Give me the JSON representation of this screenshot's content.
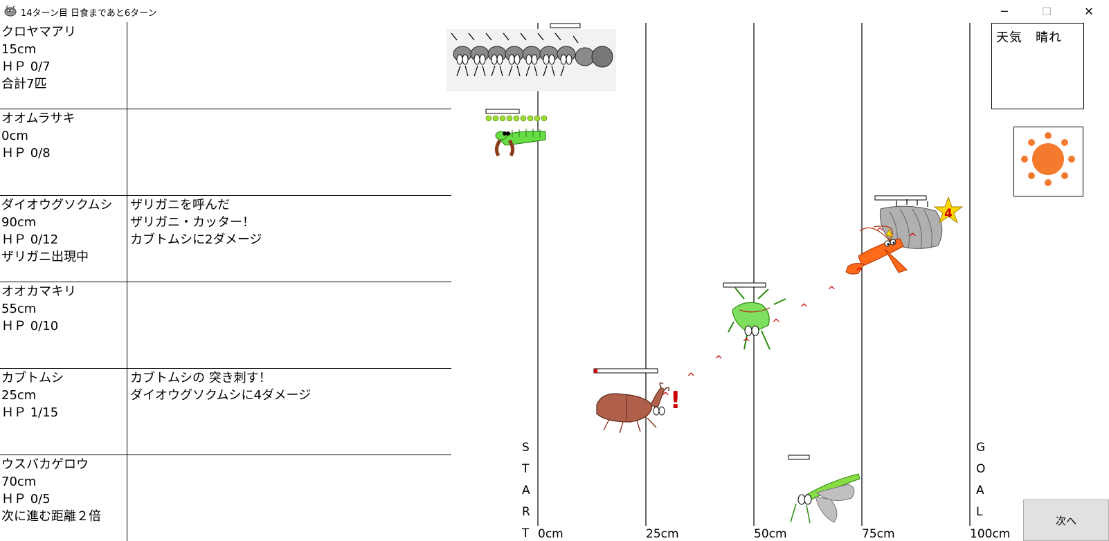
{
  "window": {
    "title": "14ターン目 日食まであと6ターン",
    "minimize": "─",
    "maximize": "☐",
    "close": "✕"
  },
  "players": [
    {
      "name": "クロヤマアリ",
      "distance": "15cm",
      "hp": "ＨＰ 0/7",
      "note": "合計7匹",
      "log": []
    },
    {
      "name": "オオムラサキ",
      "distance": "0cm",
      "hp": "ＨＰ 0/8",
      "note": "",
      "log": []
    },
    {
      "name": "ダイオウグソクムシ",
      "distance": "90cm",
      "hp": "ＨＰ 0/12",
      "note": "ザリガニ出現中",
      "log": [
        "ザリガニを呼んだ",
        "ザリガニ・カッター！",
        "カブトムシに2ダメージ"
      ]
    },
    {
      "name": "オオカマキリ",
      "distance": "55cm",
      "hp": "ＨＰ 0/10",
      "note": "",
      "log": []
    },
    {
      "name": "カブトムシ",
      "distance": "25cm",
      "hp": "ＨＰ 1/15",
      "note": "",
      "log": [
        "カブトムシの 突き刺す！",
        "ダイオウグソクムシに4ダメージ"
      ]
    },
    {
      "name": "ウスバカゲロウ",
      "distance": "70cm",
      "hp": "ＨＰ 0/5",
      "note": "次に進む距離２倍",
      "log": []
    }
  ],
  "track": {
    "start_letters": [
      "S",
      "T",
      "A",
      "R",
      "T"
    ],
    "goal_letters": [
      "G",
      "O",
      "A",
      "L"
    ],
    "tick_labels": [
      "0cm",
      "25cm",
      "50cm",
      "75cm",
      "100cm"
    ],
    "damage_mark": "4",
    "exclaim": "!",
    "arrow_glyph": "^",
    "colors": {
      "hp_red": "#cc0000",
      "sun": "#f47a2e",
      "star": "#ffd700",
      "star_text": "#cc0000"
    }
  },
  "weather": {
    "label": "天気　晴れ",
    "icon": "sun-icon"
  },
  "next_button": {
    "label": "次へ"
  }
}
